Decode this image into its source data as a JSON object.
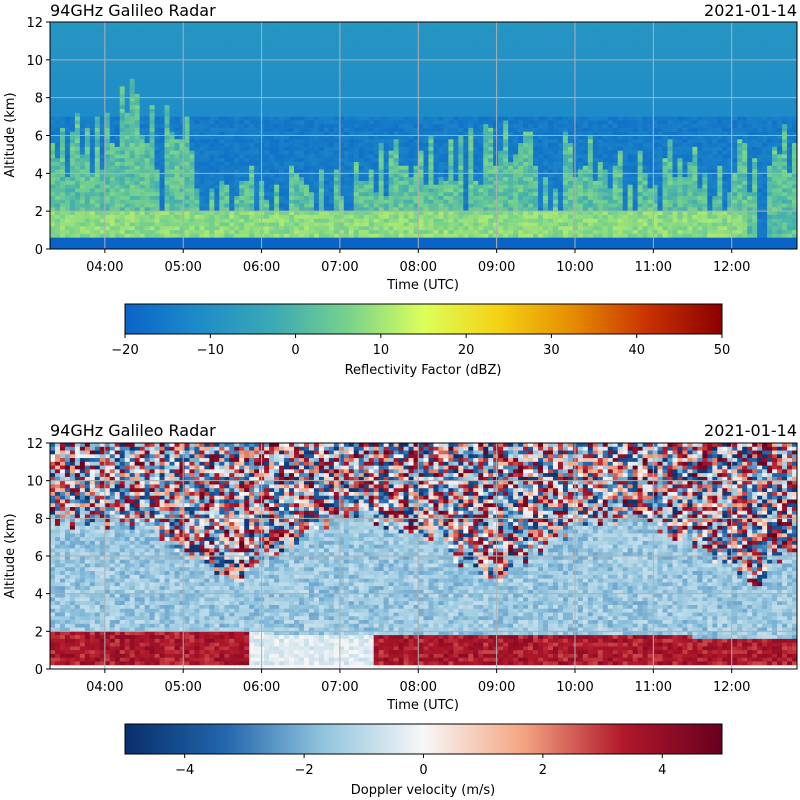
{
  "chart_data": [
    {
      "type": "heatmap",
      "title": "94GHz Galileo Radar",
      "date": "2021-01-14",
      "xlabel": "Time (UTC)",
      "ylabel": "Altitude (km)",
      "xlim": [
        "03:18",
        "12:50"
      ],
      "ylim": [
        0,
        12
      ],
      "xticks": [
        "04:00",
        "05:00",
        "06:00",
        "07:00",
        "08:00",
        "09:00",
        "10:00",
        "11:00",
        "12:00"
      ],
      "yticks": [
        "0",
        "2",
        "4",
        "6",
        "8",
        "10",
        "12"
      ],
      "grid": true,
      "colorbar": {
        "label": "Reflectivity Factor (dBZ)",
        "range": [
          -20,
          50
        ],
        "ticks": [
          "−20",
          "−10",
          "0",
          "10",
          "20",
          "30",
          "40",
          "50"
        ],
        "colormap": "HomeyerRainbow-like",
        "stops": [
          "#0a64c8",
          "#1e8cc8",
          "#3caab4",
          "#78d28c",
          "#dcff5a",
          "#f5d214",
          "#e68c00",
          "#c83200",
          "#8c0000"
        ]
      },
      "background_value_dbz": -12,
      "features": {
        "cloud_tops_km": [
          6,
          8,
          5,
          4,
          5,
          6,
          6,
          5,
          5,
          6
        ],
        "low_layer_top_km": 2
      }
    },
    {
      "type": "heatmap",
      "title": "94GHz Galileo Radar",
      "date": "2021-01-14",
      "xlabel": "Time (UTC)",
      "ylabel": "Altitude (km)",
      "xlim": [
        "03:18",
        "12:50"
      ],
      "ylim": [
        0,
        12
      ],
      "xticks": [
        "04:00",
        "05:00",
        "06:00",
        "07:00",
        "08:00",
        "09:00",
        "10:00",
        "11:00",
        "12:00"
      ],
      "yticks": [
        "0",
        "2",
        "4",
        "6",
        "8",
        "10",
        "12"
      ],
      "grid": true,
      "colorbar": {
        "label": "Doppler velocity (m/s)",
        "range": [
          -5,
          5
        ],
        "ticks": [
          "−4",
          "−2",
          "0",
          "2",
          "4"
        ],
        "colormap": "RdBu_r",
        "stops": [
          "#08306b",
          "#2166ac",
          "#92c5de",
          "#f7f7f7",
          "#f4a582",
          "#b2182b",
          "#67001f"
        ]
      },
      "features": {
        "falling_ice_velocity_ms": -1.5,
        "rain_velocity_ms": 3.5,
        "melting_layer_km": 2
      }
    }
  ]
}
